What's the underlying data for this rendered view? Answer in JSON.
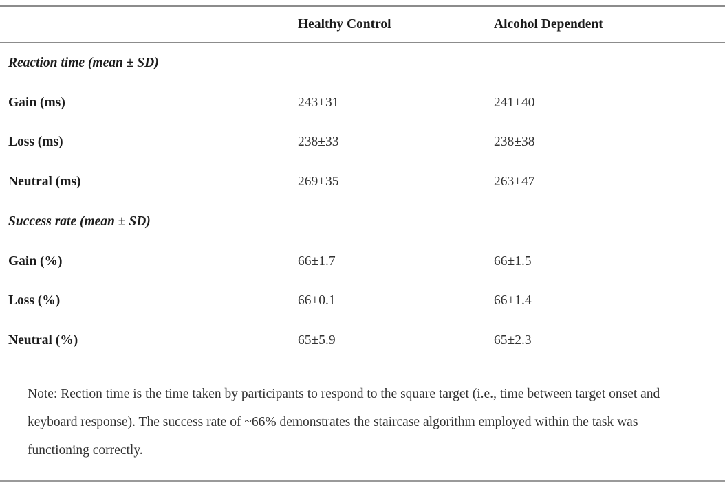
{
  "table": {
    "columns": {
      "group1": "Healthy Control",
      "group2": "Alcohol Dependent"
    },
    "sections": [
      {
        "header": "Reaction time (mean ± SD)",
        "rows": [
          {
            "label": "Gain (ms)",
            "healthy_control": "243±31",
            "alcohol_dependent": "241±40"
          },
          {
            "label": "Loss (ms)",
            "healthy_control": "238±33",
            "alcohol_dependent": "238±38"
          },
          {
            "label": "Neutral (ms)",
            "healthy_control": "269±35",
            "alcohol_dependent": "263±47"
          }
        ]
      },
      {
        "header": "Success rate (mean ± SD)",
        "rows": [
          {
            "label": "Gain (%)",
            "healthy_control": "66±1.7",
            "alcohol_dependent": "66±1.5"
          },
          {
            "label": "Loss (%)",
            "healthy_control": "66±0.1",
            "alcohol_dependent": "66±1.4"
          },
          {
            "label": "Neutral (%)",
            "healthy_control": "65±5.9",
            "alcohol_dependent": "65±2.3"
          }
        ]
      }
    ],
    "note": "Note: Rection time is the time taken by participants to respond to the square target (i.e., time between target onset and keyboard response). The success rate of ~66% demonstrates the staircase algorithm employed within the task was functioning correctly."
  },
  "colors": {
    "text": "#231f20",
    "value_text": "#333333",
    "rule": "#8c8c8c",
    "bottom_rule": "#9a9a9a",
    "background": "#ffffff"
  }
}
